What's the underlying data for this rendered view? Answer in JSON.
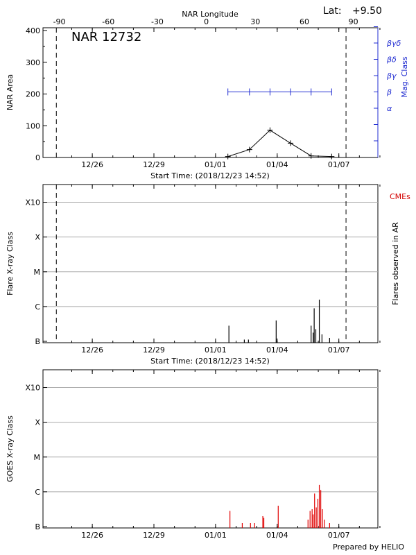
{
  "header": {
    "lat_label": "Lat:",
    "lat_value": "+9.50"
  },
  "footer": {
    "credit": "Prepared by HELIO"
  },
  "chart_data": [
    {
      "type": "line",
      "title": "NAR 12732",
      "xlabel": "Start Time: (2018/12/23 14:52)",
      "ylabel": "NAR Area",
      "ylim": [
        0,
        400
      ],
      "yticks": [
        "0",
        "100",
        "200",
        "300",
        "400"
      ],
      "xlim_days": [
        0,
        16.3
      ],
      "date_ticks": [
        {
          "day": 2.4,
          "label": "12/26"
        },
        {
          "day": 5.4,
          "label": "12/29"
        },
        {
          "day": 8.4,
          "label": "01/01"
        },
        {
          "day": 11.4,
          "label": "01/04"
        },
        {
          "day": 14.4,
          "label": "01/07"
        }
      ],
      "top_axis": {
        "label": "NAR Longitude",
        "xlim": [
          -100,
          105
        ],
        "ticks": [
          "-90",
          "-60",
          "-30",
          "0",
          "30",
          "60",
          "90"
        ]
      },
      "dashed_limits_day": [
        0.65,
        14.75
      ],
      "area_series": {
        "x_day": [
          9.0,
          10.05,
          11.05,
          12.05,
          13.05,
          14.05
        ],
        "values": [
          3,
          25,
          86,
          45,
          5,
          3
        ]
      },
      "right_axis": {
        "label": "Mag. Class",
        "ticks": [
          "α",
          "β",
          "βγ",
          "βδ",
          "βγδ"
        ],
        "color": "#1f2bd1"
      },
      "mag_series": {
        "x_day": [
          9.0,
          10.05,
          11.05,
          12.05,
          13.05,
          14.05
        ],
        "class": "β"
      }
    },
    {
      "type": "bar",
      "xlabel": "Start Time: (2018/12/23 14:52)",
      "ylabel": "Flare X-ray Class",
      "right_label": "Flares observed in AR",
      "cme_label": "CMEs",
      "yticks": [
        "B",
        "C",
        "M",
        "X",
        "X10"
      ],
      "date_ticks": [
        "12/26",
        "12/29",
        "01/01",
        "01/04",
        "01/07"
      ],
      "flares": [
        {
          "day": 9.05,
          "level": 0.45
        },
        {
          "day": 9.8,
          "level": 0.05
        },
        {
          "day": 10.0,
          "level": 0.05
        },
        {
          "day": 11.35,
          "level": 0.6
        },
        {
          "day": 13.05,
          "level": 0.45
        },
        {
          "day": 13.15,
          "level": 0.25
        },
        {
          "day": 13.2,
          "level": 0.95
        },
        {
          "day": 13.28,
          "level": 0.35
        },
        {
          "day": 13.45,
          "level": 1.2
        },
        {
          "day": 13.58,
          "level": 0.2
        },
        {
          "day": 13.95,
          "level": 0.1
        }
      ]
    },
    {
      "type": "bar",
      "ylabel": "GOES X-ray Class",
      "yticks": [
        "B",
        "C",
        "M",
        "X",
        "X10"
      ],
      "date_ticks": [
        "12/26",
        "12/29",
        "01/01",
        "01/04",
        "01/07"
      ],
      "goes_events": [
        {
          "day": 9.1,
          "level": 0.45
        },
        {
          "day": 9.7,
          "level": 0.1
        },
        {
          "day": 10.1,
          "level": 0.1
        },
        {
          "day": 10.3,
          "level": 0.1
        },
        {
          "day": 10.7,
          "level": 0.3
        },
        {
          "day": 10.75,
          "level": 0.25
        },
        {
          "day": 11.45,
          "level": 0.6
        },
        {
          "day": 12.9,
          "level": 0.2
        },
        {
          "day": 13.0,
          "level": 0.45
        },
        {
          "day": 13.1,
          "level": 0.5
        },
        {
          "day": 13.15,
          "level": 0.35
        },
        {
          "day": 13.22,
          "level": 0.95
        },
        {
          "day": 13.3,
          "level": 0.55
        },
        {
          "day": 13.38,
          "level": 0.8
        },
        {
          "day": 13.45,
          "level": 1.2
        },
        {
          "day": 13.52,
          "level": 1.05
        },
        {
          "day": 13.6,
          "level": 0.5
        },
        {
          "day": 13.7,
          "level": 0.2
        },
        {
          "day": 13.95,
          "level": 0.1
        }
      ]
    }
  ]
}
